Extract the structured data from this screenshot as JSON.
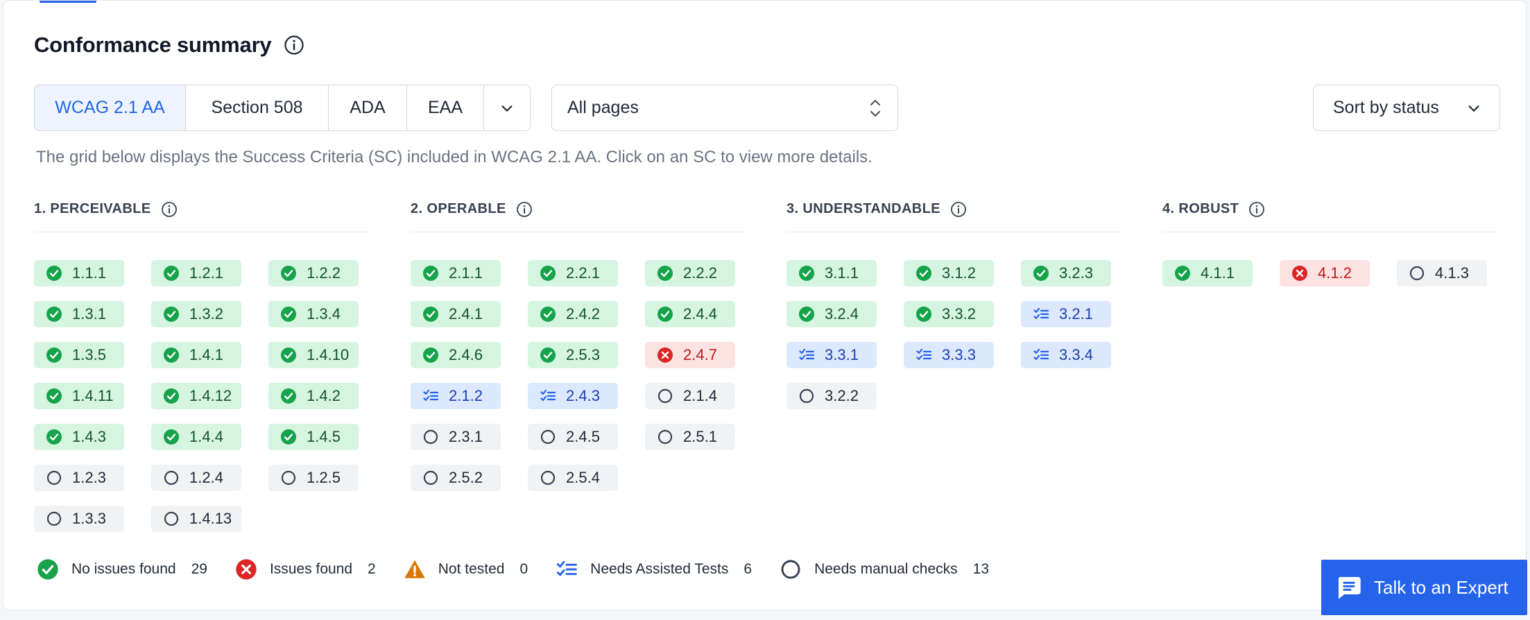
{
  "title": "Conformance summary",
  "standards": [
    {
      "label": "WCAG 2.1 AA",
      "active": true
    },
    {
      "label": "Section 508",
      "active": false
    },
    {
      "label": "ADA",
      "active": false
    },
    {
      "label": "EAA",
      "active": false
    }
  ],
  "pages_select": {
    "value": "All pages"
  },
  "sort_select": {
    "value": "Sort by status"
  },
  "description": "The grid below displays the Success Criteria (SC) included in WCAG 2.1 AA. Click on an SC to view more details.",
  "columns": [
    {
      "title": "1. PERCEIVABLE",
      "criteria": [
        {
          "id": "1.1.1",
          "status": "pass"
        },
        {
          "id": "1.2.1",
          "status": "pass"
        },
        {
          "id": "1.2.2",
          "status": "pass"
        },
        {
          "id": "1.3.1",
          "status": "pass"
        },
        {
          "id": "1.3.2",
          "status": "pass"
        },
        {
          "id": "1.3.4",
          "status": "pass"
        },
        {
          "id": "1.3.5",
          "status": "pass"
        },
        {
          "id": "1.4.1",
          "status": "pass"
        },
        {
          "id": "1.4.10",
          "status": "pass"
        },
        {
          "id": "1.4.11",
          "status": "pass"
        },
        {
          "id": "1.4.12",
          "status": "pass"
        },
        {
          "id": "1.4.2",
          "status": "pass"
        },
        {
          "id": "1.4.3",
          "status": "pass"
        },
        {
          "id": "1.4.4",
          "status": "pass"
        },
        {
          "id": "1.4.5",
          "status": "pass"
        },
        {
          "id": "1.2.3",
          "status": "manual"
        },
        {
          "id": "1.2.4",
          "status": "manual"
        },
        {
          "id": "1.2.5",
          "status": "manual"
        },
        {
          "id": "1.3.3",
          "status": "manual"
        },
        {
          "id": "1.4.13",
          "status": "manual"
        }
      ]
    },
    {
      "title": "2. OPERABLE",
      "criteria": [
        {
          "id": "2.1.1",
          "status": "pass"
        },
        {
          "id": "2.2.1",
          "status": "pass"
        },
        {
          "id": "2.2.2",
          "status": "pass"
        },
        {
          "id": "2.4.1",
          "status": "pass"
        },
        {
          "id": "2.4.2",
          "status": "pass"
        },
        {
          "id": "2.4.4",
          "status": "pass"
        },
        {
          "id": "2.4.6",
          "status": "pass"
        },
        {
          "id": "2.5.3",
          "status": "pass"
        },
        {
          "id": "2.4.7",
          "status": "fail"
        },
        {
          "id": "2.1.2",
          "status": "assist"
        },
        {
          "id": "2.4.3",
          "status": "assist"
        },
        {
          "id": "2.1.4",
          "status": "manual"
        },
        {
          "id": "2.3.1",
          "status": "manual"
        },
        {
          "id": "2.4.5",
          "status": "manual"
        },
        {
          "id": "2.5.1",
          "status": "manual"
        },
        {
          "id": "2.5.2",
          "status": "manual"
        },
        {
          "id": "2.5.4",
          "status": "manual"
        }
      ]
    },
    {
      "title": "3. UNDERSTANDABLE",
      "criteria": [
        {
          "id": "3.1.1",
          "status": "pass"
        },
        {
          "id": "3.1.2",
          "status": "pass"
        },
        {
          "id": "3.2.3",
          "status": "pass"
        },
        {
          "id": "3.2.4",
          "status": "pass"
        },
        {
          "id": "3.3.2",
          "status": "pass"
        },
        {
          "id": "3.2.1",
          "status": "assist"
        },
        {
          "id": "3.3.1",
          "status": "assist"
        },
        {
          "id": "3.3.3",
          "status": "assist"
        },
        {
          "id": "3.3.4",
          "status": "assist"
        },
        {
          "id": "3.2.2",
          "status": "manual"
        }
      ]
    },
    {
      "title": "4. ROBUST",
      "criteria": [
        {
          "id": "4.1.1",
          "status": "pass"
        },
        {
          "id": "4.1.2",
          "status": "fail"
        },
        {
          "id": "4.1.3",
          "status": "manual"
        }
      ]
    }
  ],
  "legend": [
    {
      "label": "No issues found",
      "count": "29",
      "icon": "check-circle-icon",
      "status": "pass"
    },
    {
      "label": "Issues found",
      "count": "2",
      "icon": "x-circle-icon",
      "status": "fail"
    },
    {
      "label": "Not tested",
      "count": "0",
      "icon": "warning-triangle-icon",
      "status": "untested"
    },
    {
      "label": "Needs Assisted Tests",
      "count": "6",
      "icon": "checklist-icon",
      "status": "assist"
    },
    {
      "label": "Needs manual checks",
      "count": "13",
      "icon": "empty-circle-icon",
      "status": "manual"
    }
  ],
  "expert_button": {
    "label": "Talk to an Expert"
  },
  "colors": {
    "accent": "#2563eb",
    "pass": "#16a34a",
    "fail": "#dc2626",
    "untested": "#d97706",
    "assist": "#2563eb",
    "manual": "#374151"
  }
}
